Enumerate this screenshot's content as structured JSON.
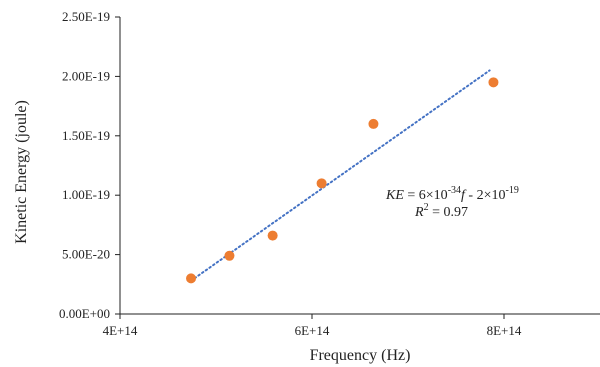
{
  "chart_data": {
    "type": "scatter",
    "xlabel": "Frequency (Hz)",
    "ylabel": "Kinetic Energy (joule)",
    "xlim": [
      400000000000000.0,
      900000000000000.0
    ],
    "ylim": [
      0,
      2.5e-19
    ],
    "x_ticks": [
      400000000000000.0,
      600000000000000.0,
      800000000000000.0
    ],
    "x_tick_labels": [
      "4E+14",
      "6E+14",
      "8E+14"
    ],
    "y_ticks": [
      0,
      5e-20,
      1e-19,
      1.5e-19,
      2e-19,
      2.5e-19
    ],
    "y_tick_labels": [
      "0.00E+00",
      "5.00E-20",
      "1.00E-19",
      "1.50E-19",
      "2.00E-19",
      "2.50E-19"
    ],
    "grid": false,
    "series": [
      {
        "color": "#ED7D31",
        "points": [
          {
            "x": 474000000000000.0,
            "y": 3e-20
          },
          {
            "x": 514000000000000.0,
            "y": 4.9e-20
          },
          {
            "x": 559000000000000.0,
            "y": 6.6e-20
          },
          {
            "x": 610000000000000.0,
            "y": 1.1e-19
          },
          {
            "x": 664000000000000.0,
            "y": 1.6e-19
          },
          {
            "x": 789000000000000.0,
            "y": 1.95e-19
          }
        ]
      }
    ],
    "trendline": {
      "style": "dotted",
      "color": "#4472C4",
      "x_range": [
        474000000000000.0,
        785000000000000.0
      ],
      "y_range": [
        2.8e-20,
        2.05e-19
      ]
    },
    "equation": {
      "ke": "KE",
      "eq_part": " = 6×10",
      "exp1": "-34",
      "f": "f",
      "minus_part": " - 2×10",
      "exp2": "-19",
      "r2_r": "R",
      "r2_exp": "2",
      "r2_val": " = 0.97"
    }
  }
}
